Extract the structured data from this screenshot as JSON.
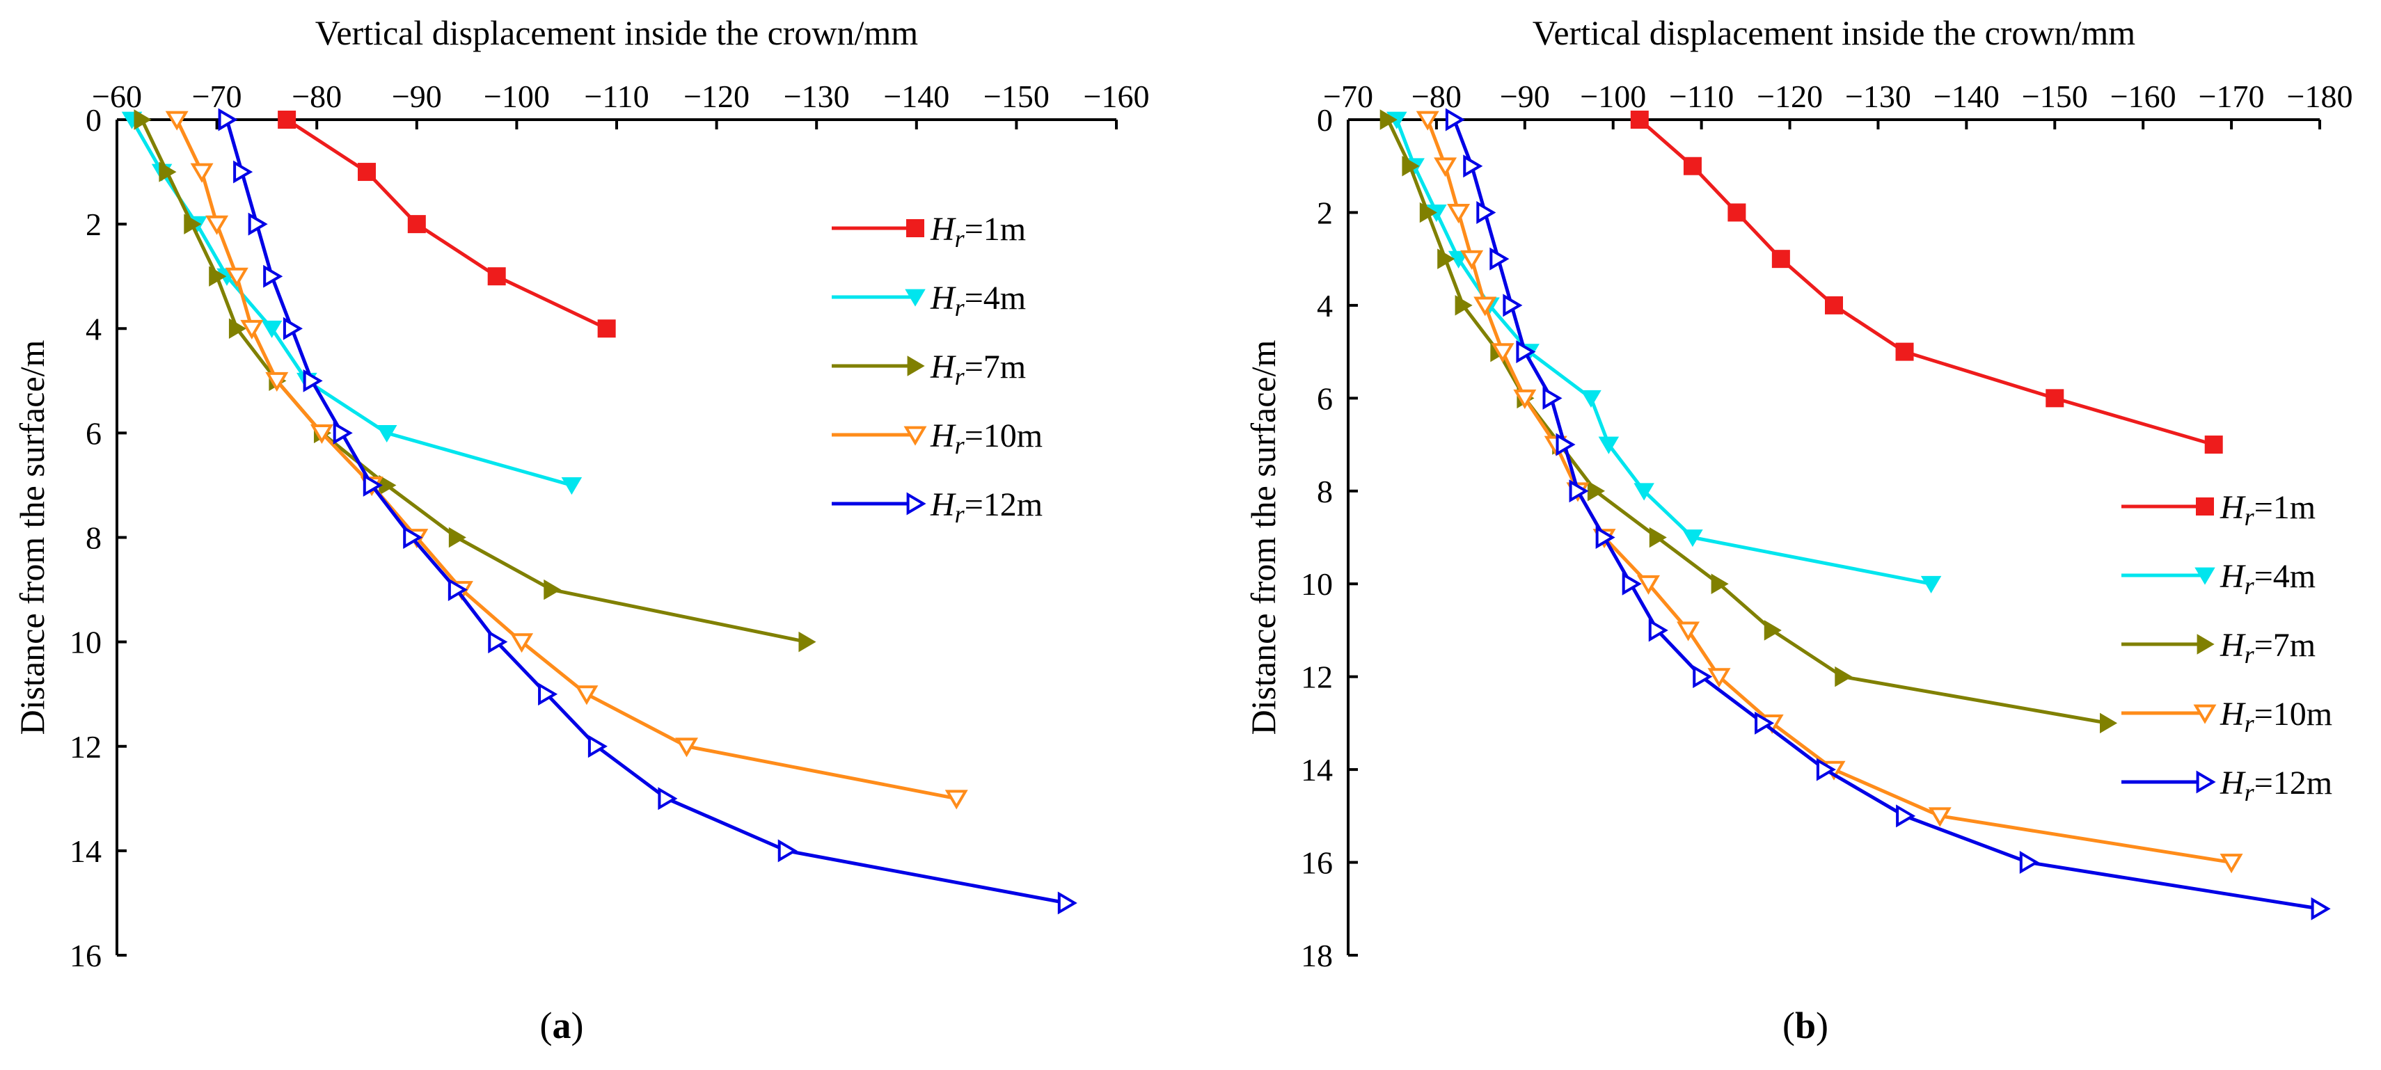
{
  "chart_data": [
    {
      "type": "line",
      "panel_label": "(a)",
      "xlabel": "Vertical displacement inside the crown/mm",
      "ylabel": "Distance from the surface/m",
      "xlim": [
        -60,
        -160
      ],
      "ylim": [
        0,
        16
      ],
      "x_ticks": [
        -60,
        -70,
        -80,
        -90,
        -100,
        -110,
        -120,
        -130,
        -140,
        -150,
        -160
      ],
      "y_ticks": [
        0,
        2,
        4,
        6,
        8,
        10,
        12,
        14,
        16
      ],
      "grid": false,
      "legend_position": "top-right",
      "series": [
        {
          "name": "Hr=1m",
          "name_main": "H",
          "name_sub": "r",
          "name_rest": "=1m",
          "color": "#ee1c1c",
          "marker": "square",
          "x": [
            -77,
            -85,
            -90,
            -98,
            -109
          ],
          "y": [
            0,
            1,
            2,
            3,
            4
          ]
        },
        {
          "name": "Hr=4m",
          "name_main": "H",
          "name_sub": "r",
          "name_rest": "=4m",
          "color": "#00e5ee",
          "marker": "triangle-down-filled",
          "x": [
            -61.5,
            -64.5,
            -68,
            -71,
            -75.5,
            -79,
            -87,
            -105.5
          ],
          "y": [
            0,
            1,
            2,
            3,
            4,
            5,
            6,
            7
          ]
        },
        {
          "name": "Hr=7m",
          "name_main": "H",
          "name_sub": "r",
          "name_rest": "=7m",
          "color": "#808000",
          "marker": "triangle-right-filled",
          "x": [
            -62.5,
            -65,
            -67.5,
            -70,
            -72,
            -76,
            -80.5,
            -87,
            -94,
            -103.5,
            -129
          ],
          "y": [
            0,
            1,
            2,
            3,
            4,
            5,
            6,
            7,
            8,
            9,
            10
          ]
        },
        {
          "name": "Hr=10m",
          "name_main": "H",
          "name_sub": "r",
          "name_rest": "=10m",
          "color": "#ff8c1a",
          "marker": "triangle-down-open",
          "x": [
            -66,
            -68.5,
            -70,
            -72,
            -73.5,
            -76,
            -80.5,
            -85.5,
            -90,
            -94.5,
            -100.5,
            -107,
            -117,
            -144
          ],
          "y": [
            0,
            1,
            2,
            3,
            4,
            5,
            6,
            7,
            8,
            9,
            10,
            11,
            12,
            13
          ]
        },
        {
          "name": "Hr=12m",
          "name_main": "H",
          "name_sub": "r",
          "name_rest": "=12m",
          "color": "#0000e6",
          "marker": "triangle-right-open",
          "x": [
            -71,
            -72.5,
            -74,
            -75.5,
            -77.5,
            -79.5,
            -82.5,
            -85.5,
            -89.5,
            -94,
            -98,
            -103,
            -108,
            -115,
            -127,
            -155
          ],
          "y": [
            0,
            1,
            2,
            3,
            4,
            5,
            6,
            7,
            8,
            9,
            10,
            11,
            12,
            13,
            14,
            15
          ]
        }
      ]
    },
    {
      "type": "line",
      "panel_label": "(b)",
      "xlabel": "Vertical displacement inside the crown/mm",
      "ylabel": "Distance from the surface/m",
      "xlim": [
        -70,
        -180
      ],
      "ylim": [
        0,
        18
      ],
      "x_ticks": [
        -70,
        -80,
        -90,
        -100,
        -110,
        -120,
        -130,
        -140,
        -150,
        -160,
        -170,
        -180
      ],
      "y_ticks": [
        0,
        2,
        4,
        6,
        8,
        10,
        12,
        14,
        16,
        18
      ],
      "grid": false,
      "legend_position": "right",
      "series": [
        {
          "name": "Hr=1m",
          "name_main": "H",
          "name_sub": "r",
          "name_rest": "=1m",
          "color": "#ee1c1c",
          "marker": "square",
          "x": [
            -103,
            -109,
            -114,
            -119,
            -125,
            -133,
            -150,
            -168
          ],
          "y": [
            0,
            1,
            2,
            3,
            4,
            5,
            6,
            7
          ]
        },
        {
          "name": "Hr=4m",
          "name_main": "H",
          "name_sub": "r",
          "name_rest": "=4m",
          "color": "#00e5ee",
          "marker": "triangle-down-filled",
          "x": [
            -75.5,
            -77.5,
            -80,
            -82.5,
            -86,
            -90.5,
            -97.5,
            -99.5,
            -103.5,
            -109,
            -136
          ],
          "y": [
            0,
            1,
            2,
            3,
            4,
            5,
            6,
            7,
            8,
            9,
            10
          ]
        },
        {
          "name": "Hr=7m",
          "name_main": "H",
          "name_sub": "r",
          "name_rest": "=7m",
          "color": "#808000",
          "marker": "triangle-right-filled",
          "x": [
            -74.5,
            -77,
            -79,
            -81,
            -83,
            -87,
            -90,
            -94,
            -98,
            -105,
            -112,
            -118,
            -126,
            -156
          ],
          "y": [
            0,
            1,
            2,
            3,
            4,
            5,
            6,
            7,
            8,
            9,
            10,
            11,
            12,
            13
          ]
        },
        {
          "name": "Hr=10m",
          "name_main": "H",
          "name_sub": "r",
          "name_rest": "=10m",
          "color": "#ff8c1a",
          "marker": "triangle-down-open",
          "x": [
            -79,
            -81,
            -82.5,
            -84,
            -85.5,
            -87.5,
            -90,
            -93.5,
            -96,
            -99,
            -104,
            -108.5,
            -112,
            -118,
            -125,
            -137,
            -170
          ],
          "y": [
            0,
            1,
            2,
            3,
            4,
            5,
            6,
            7,
            8,
            9,
            10,
            11,
            12,
            13,
            14,
            15,
            16
          ]
        },
        {
          "name": "Hr=12m",
          "name_main": "H",
          "name_sub": "r",
          "name_rest": "=12m",
          "color": "#0000e6",
          "marker": "triangle-right-open",
          "x": [
            -82,
            -84,
            -85.5,
            -87,
            -88.5,
            -90,
            -93,
            -94.5,
            -96,
            -99,
            -102,
            -105,
            -110,
            -117,
            -124,
            -133,
            -147,
            -180
          ],
          "y": [
            0,
            1,
            2,
            3,
            4,
            5,
            6,
            7,
            8,
            9,
            10,
            11,
            12,
            13,
            14,
            15,
            16,
            17
          ]
        }
      ]
    }
  ]
}
